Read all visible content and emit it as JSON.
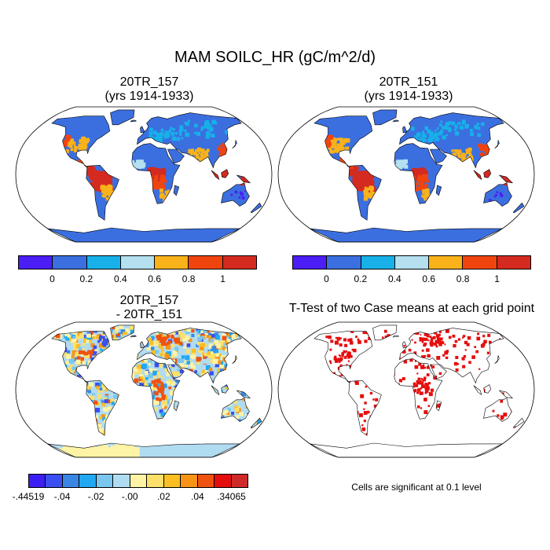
{
  "title": "MAM SOILC_HR (gC/m^2/d)",
  "panels": [
    {
      "id": "a",
      "title_line1": "20TR_157",
      "title_line2": "(yrs 1914-1933)"
    },
    {
      "id": "b",
      "title_line1": "20TR_151",
      "title_line2": "(yrs 1914-1933)"
    },
    {
      "id": "c",
      "title_line1": "20TR_157",
      "title_line2": "- 20TR_151"
    },
    {
      "id": "d",
      "title_line1": "T-Test of two Case means at each grid point",
      "title_line2": ""
    }
  ],
  "colorbar_top": {
    "colors": [
      "#4b1ef5",
      "#3b6fe0",
      "#17b0e8",
      "#b4e0f0",
      "#f9b21a",
      "#f0440f",
      "#d42a20"
    ],
    "labels": [
      "0",
      "0.2",
      "0.4",
      "0.6",
      "0.8",
      "1"
    ]
  },
  "colorbar_diff": {
    "colors": [
      "#3d1ef2",
      "#3a4ff0",
      "#3a86e5",
      "#22a8f0",
      "#7ac6ee",
      "#b0dcf2",
      "#fff3a6",
      "#fde06a",
      "#fbbf24",
      "#f79416",
      "#f0520f",
      "#e60d0d",
      "#cf2a2a"
    ],
    "labels": [
      "-.44519",
      "-.04",
      "-.02",
      "-.00",
      ".02",
      ".04",
      ".34065"
    ]
  },
  "note": "Cells are significant at 0.1 level",
  "colors": {
    "land_low": "#3b6fe0",
    "land_mid": "#f9b21a",
    "land_high": "#d42a20",
    "diff_base": "#b0dcf2",
    "diff_pos": "#fde06a",
    "signif": "#e60d0d",
    "antarctica_diff": "#fff3a6"
  }
}
